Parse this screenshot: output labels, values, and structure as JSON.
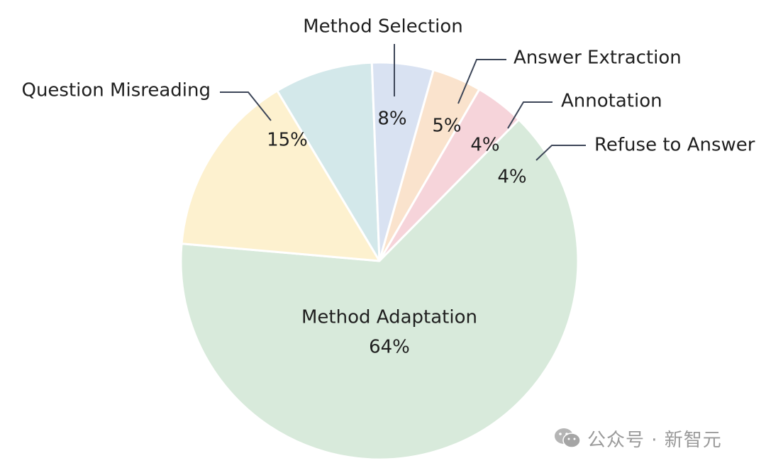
{
  "chart_data": {
    "type": "pie",
    "title": "",
    "start_angle_deg": -121,
    "categories": [
      "Method Selection",
      "Answer Extraction",
      "Annotation",
      "Refuse to Answer",
      "Method Adaptation",
      "Question Misreading"
    ],
    "values": [
      8,
      5,
      4,
      4,
      64,
      15
    ],
    "value_labels": [
      "8%",
      "5%",
      "4%",
      "4%",
      "64%",
      "15%"
    ],
    "colors": [
      "#d3e8ea",
      "#d9e2f2",
      "#fae3cd",
      "#f6d4da",
      "#d8eadb",
      "#fdf1cf"
    ],
    "legend": "none",
    "label_style": "outside-with-leader-lines"
  },
  "watermark": {
    "text": "公众号 · 新智元",
    "icon": "wechat-icon"
  }
}
